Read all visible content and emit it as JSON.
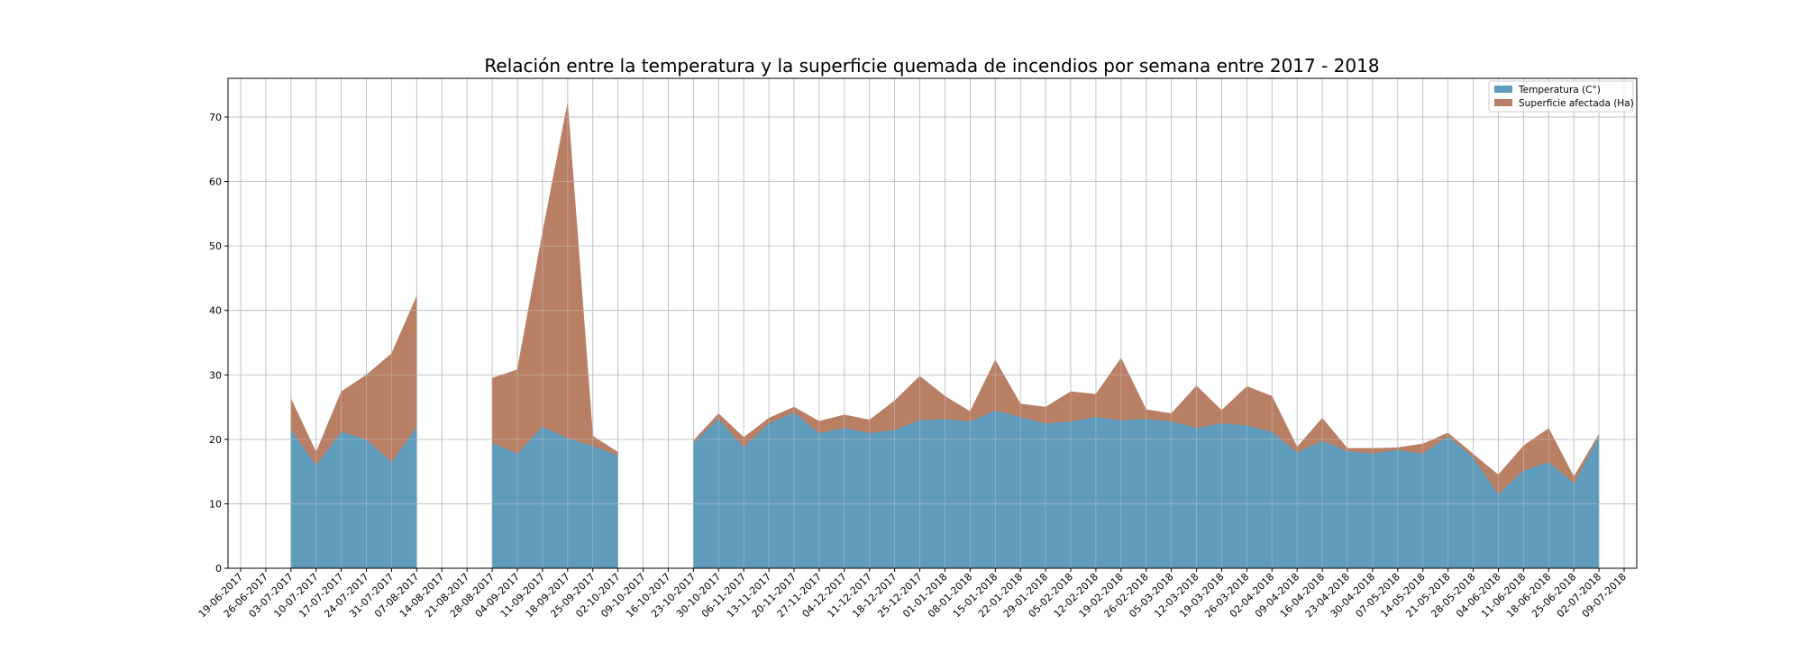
{
  "chart_data": {
    "type": "area",
    "stacked": true,
    "title": "Relación entre la temperatura y la superficie quemada de incendios por semana entre 2017 - 2018",
    "xlabel": "",
    "ylabel": "",
    "ylim": [
      0,
      76
    ],
    "yticks": [
      0,
      10,
      20,
      30,
      40,
      50,
      60,
      70
    ],
    "grid": true,
    "legend_position": "top-right",
    "categories": [
      "19-06-2017",
      "26-06-2017",
      "03-07-2017",
      "10-07-2017",
      "17-07-2017",
      "24-07-2017",
      "31-07-2017",
      "07-08-2017",
      "14-08-2017",
      "21-08-2017",
      "28-08-2017",
      "04-09-2017",
      "11-09-2017",
      "18-09-2017",
      "25-09-2017",
      "02-10-2017",
      "09-10-2017",
      "16-10-2017",
      "23-10-2017",
      "30-10-2017",
      "06-11-2017",
      "13-11-2017",
      "20-11-2017",
      "27-11-2017",
      "04-12-2017",
      "11-12-2017",
      "18-12-2017",
      "25-12-2017",
      "01-01-2018",
      "08-01-2018",
      "15-01-2018",
      "22-01-2018",
      "29-01-2018",
      "05-02-2018",
      "12-02-2018",
      "19-02-2018",
      "26-02-2018",
      "05-03-2018",
      "12-03-2018",
      "19-03-2018",
      "26-03-2018",
      "02-04-2018",
      "09-04-2018",
      "16-04-2018",
      "23-04-2018",
      "30-04-2018",
      "07-05-2018",
      "14-05-2018",
      "21-05-2018",
      "28-05-2018",
      "04-06-2018",
      "11-06-2018",
      "18-06-2018",
      "25-06-2018",
      "02-07-2018",
      "09-07-2018"
    ],
    "series": [
      {
        "name": "Temperatura (C°)",
        "color": "#5f9bbb",
        "values": [
          null,
          null,
          21.5,
          16.0,
          21.2,
          20.0,
          16.5,
          22.0,
          null,
          null,
          19.5,
          17.8,
          22.0,
          20.2,
          19.0,
          17.5,
          null,
          null,
          19.5,
          23.2,
          18.8,
          22.5,
          24.2,
          21.0,
          21.8,
          21.0,
          21.5,
          23.0,
          23.2,
          22.8,
          24.5,
          23.5,
          22.5,
          22.8,
          23.5,
          23.0,
          23.2,
          22.8,
          21.8,
          22.5,
          22.2,
          21.2,
          18.0,
          19.8,
          18.2,
          17.8,
          18.4,
          17.8,
          20.5,
          17.2,
          11.5,
          15.2,
          16.5,
          13.2,
          20.5,
          null
        ]
      },
      {
        "name": "Superficie afectada (Ha)",
        "color": "#b97f64",
        "values": [
          null,
          null,
          4.8,
          2.0,
          6.2,
          10.0,
          16.8,
          20.2,
          null,
          null,
          10.0,
          13.0,
          30.0,
          52.0,
          1.5,
          0.5,
          null,
          null,
          0.3,
          0.8,
          1.5,
          0.8,
          0.8,
          1.8,
          2.0,
          2.0,
          4.5,
          6.8,
          3.5,
          1.5,
          7.8,
          2.0,
          2.5,
          4.6,
          3.5,
          9.6,
          1.4,
          1.2,
          6.5,
          2.0,
          6.0,
          5.5,
          0.8,
          3.5,
          0.4,
          0.8,
          0.3,
          1.5,
          0.5,
          0.5,
          3.0,
          3.8,
          5.2,
          1.0,
          0.3,
          null
        ]
      }
    ]
  }
}
